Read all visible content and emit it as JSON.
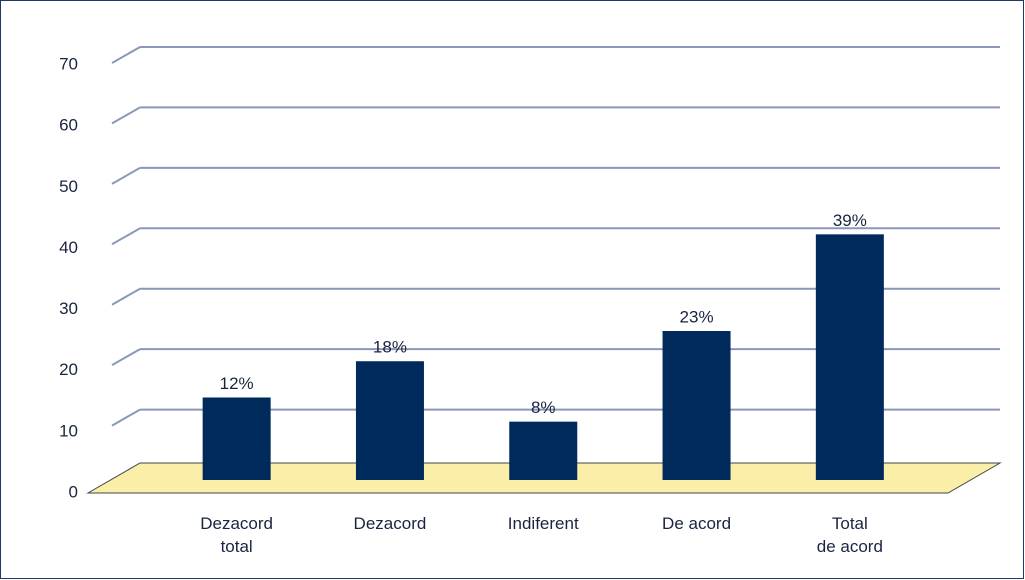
{
  "chart_data": {
    "type": "bar",
    "categories": [
      "Dezacord\ntotal",
      "Dezacord",
      "Indiferent",
      "De acord",
      "Total\nde acord"
    ],
    "values": [
      12,
      18,
      8,
      23,
      39
    ],
    "value_labels": [
      "12%",
      "18%",
      "8%",
      "23%",
      "39%"
    ],
    "color": "#002a5c",
    "ylim": [
      0,
      70
    ],
    "yticks": [
      0,
      10,
      20,
      30,
      40,
      50,
      60,
      70
    ],
    "grid": true
  }
}
